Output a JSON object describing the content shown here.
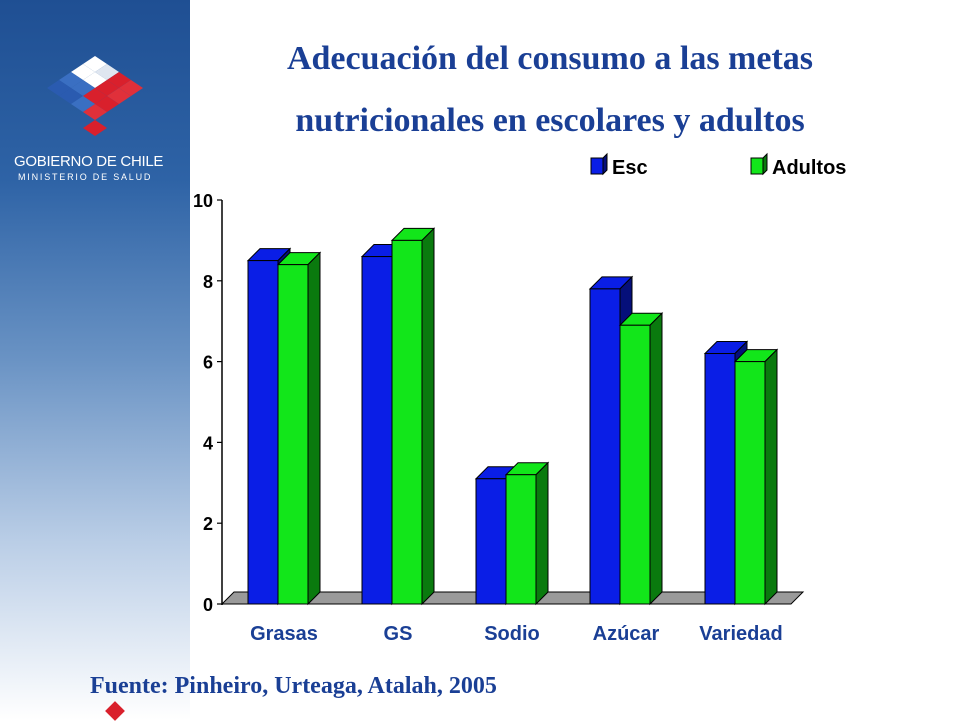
{
  "header": {
    "title_line1": "Adecuación del consumo a las metas",
    "title_line2": "nutricionales en escolares y adultos"
  },
  "branding": {
    "org_name": "GOBIERNO DE CHILE",
    "org_sub": "MINISTERIO DE SALUD"
  },
  "footer": {
    "source": "Fuente: Pinheiro, Urteaga, Atalah, 2005"
  },
  "colors": {
    "title": "#1a3f95",
    "esc_front": "#0a1ee6",
    "esc_side": "#050f7a",
    "adultos_front": "#12e61a",
    "adultos_side": "#0a7a0e"
  },
  "chart_data": {
    "type": "bar",
    "categories": [
      "Grasas",
      "GS",
      "Sodio",
      "Azúcar",
      "Variedad"
    ],
    "series": [
      {
        "name": "Esc",
        "values": [
          8.5,
          8.6,
          3.1,
          7.8,
          6.2
        ]
      },
      {
        "name": "Adultos",
        "values": [
          8.4,
          9.0,
          3.2,
          6.9,
          6.0
        ]
      }
    ],
    "ylim": [
      0,
      10
    ],
    "yticks": [
      "0",
      "2",
      "4",
      "6",
      "8",
      "10"
    ],
    "legend": "top-right",
    "grid": false
  }
}
